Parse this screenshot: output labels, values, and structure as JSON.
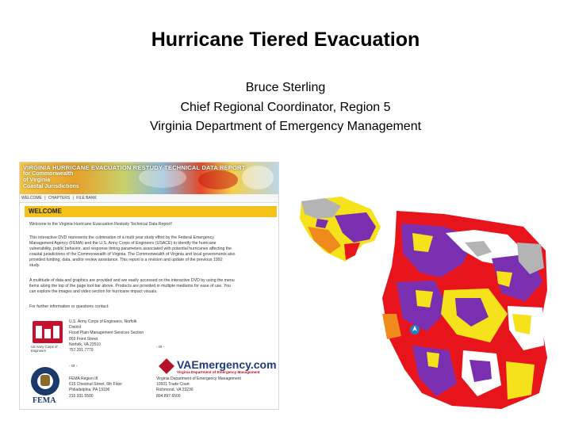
{
  "slide": {
    "title": "Hurricane Tiered Evacuation",
    "author": "Bruce Sterling",
    "role": "Chief Regional Coordinator, Region 5",
    "organization": "Virginia Department of Emergency Management"
  },
  "screenshot": {
    "banner_title": "VIRGINIA HURRICANE EVACUATION RESTUDY TECHNICAL DATA REPORT",
    "banner_lines": [
      "for Commonwealth",
      "of Virginia",
      "Coastal Jurisdictions"
    ],
    "nav_items": [
      "WELCOME",
      "|",
      "CHAPTERS",
      "|",
      "FILE BANK"
    ],
    "welcome_heading": "WELCOME",
    "intro_line": "Welcome to the Virginia Hurricane Evacuation Restudy Technical Data Report!",
    "paragraph1": [
      "This interactive DVD represents the culmination of a multi year study effort by the Federal Emergency",
      "Management Agency (FEMA) and the U.S. Army Corps of Engineers (USACE) to identify the hurricane",
      "vulnerability, public behavior, and response timing parameters associated with potential hurricanes affecting the",
      "coastal jurisdictions of the Commonwealth of Virginia. The Commonwealth of Virginia and local governments also",
      "provided funding, data, and/or review assistance. This report is a revision and update of the previous 1992",
      "study."
    ],
    "paragraph2": [
      "A multitude of data and graphics are provided and are easily accessed on the interactive DVD by using the menu",
      "items along the top of the page tool bar above. Products are provided in multiple mediums for ease of use. You",
      "can explore the images and video section for hurricane impact visuals."
    ],
    "contact_line": "For further information or questions contact:",
    "usace_label": "US Army Corps of Engineers",
    "usace_address": [
      "U.S. Army Corps of Engineers, Norfolk",
      "District",
      "Flood Plain Management Services Section",
      "803 Front Street",
      "Norfolk, VA 23510",
      "757.201.7779"
    ],
    "or_text": "- or -",
    "fema_address": [
      "FEMA Region III",
      "615 Chestnut Street, 6th Floor",
      "Philadelphia, PA 19106",
      "215.931.5500"
    ],
    "fema_logo_text": "FEMA",
    "vae_name": "VAEmergency.com",
    "vae_tagline": "Virginia Department of Emergency Management",
    "vdem_address": [
      "Virginia Department of Emergency Management",
      "10501 Trade Court",
      "Richmond, VA 23236",
      "804.897.6500"
    ]
  },
  "map": {
    "colors": {
      "zone_a": "#e8141b",
      "zone_b": "#7a2fb0",
      "zone_c": "#f5e21a",
      "zone_d": "#f08a1c",
      "water": "#ffffff",
      "land_gray": "#b4b4b4",
      "compass": "#1e7fd0"
    },
    "north_arrow_icon": "north-arrow-icon"
  }
}
